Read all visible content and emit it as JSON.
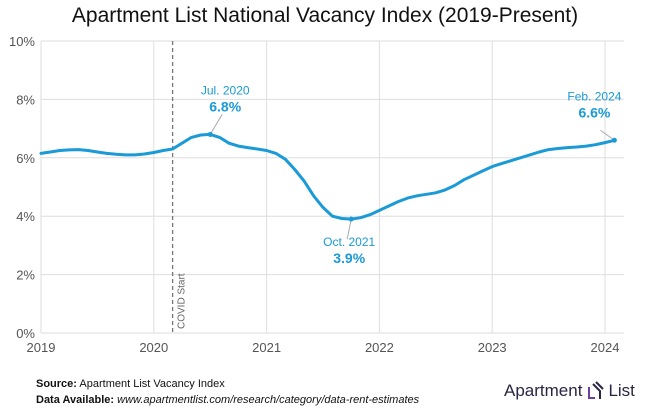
{
  "title": "Apartment List National Vacancy Index (2019-Present)",
  "chart_data": {
    "type": "line",
    "title": "Apartment List National Vacancy Index (2019-Present)",
    "xlabel": "",
    "ylabel": "",
    "ylim": [
      0,
      10
    ],
    "yticks": [
      "0%",
      "2%",
      "4%",
      "6%",
      "8%",
      "10%"
    ],
    "xticks": [
      "2019",
      "2020",
      "2021",
      "2022",
      "2023",
      "2024"
    ],
    "grid": true,
    "line_color": "#1a9ad6",
    "start": "2019-01",
    "values": [
      6.15,
      6.2,
      6.25,
      6.27,
      6.28,
      6.25,
      6.2,
      6.15,
      6.12,
      6.1,
      6.1,
      6.13,
      6.18,
      6.25,
      6.3,
      6.5,
      6.7,
      6.78,
      6.8,
      6.7,
      6.5,
      6.4,
      6.35,
      6.3,
      6.25,
      6.15,
      5.95,
      5.6,
      5.2,
      4.7,
      4.3,
      4.0,
      3.92,
      3.9,
      3.95,
      4.05,
      4.2,
      4.35,
      4.5,
      4.62,
      4.7,
      4.75,
      4.8,
      4.9,
      5.05,
      5.25,
      5.4,
      5.55,
      5.7,
      5.8,
      5.9,
      6.0,
      6.1,
      6.2,
      6.28,
      6.32,
      6.35,
      6.37,
      6.4,
      6.45,
      6.52,
      6.6
    ],
    "event_line": {
      "date": "2020-03",
      "label": "COVID Start"
    },
    "annotations": [
      {
        "date": "2020-07",
        "value": 6.8,
        "label": "Jul. 2020",
        "value_label": "6.8%"
      },
      {
        "date": "2021-10",
        "value": 3.9,
        "label": "Oct. 2021",
        "value_label": "3.9%"
      },
      {
        "date": "2024-02",
        "value": 6.6,
        "label": "Feb. 2024",
        "value_label": "6.6%"
      }
    ]
  },
  "footer": {
    "source_label": "Source:",
    "source": "Apartment List Vacancy Index",
    "data_label": "Data Available:",
    "data_url": "www.apartmentlist.com/research/category/data-rent-estimates"
  },
  "logo": {
    "left": "Apartment",
    "right": "List",
    "color": "#6b3fa0"
  }
}
